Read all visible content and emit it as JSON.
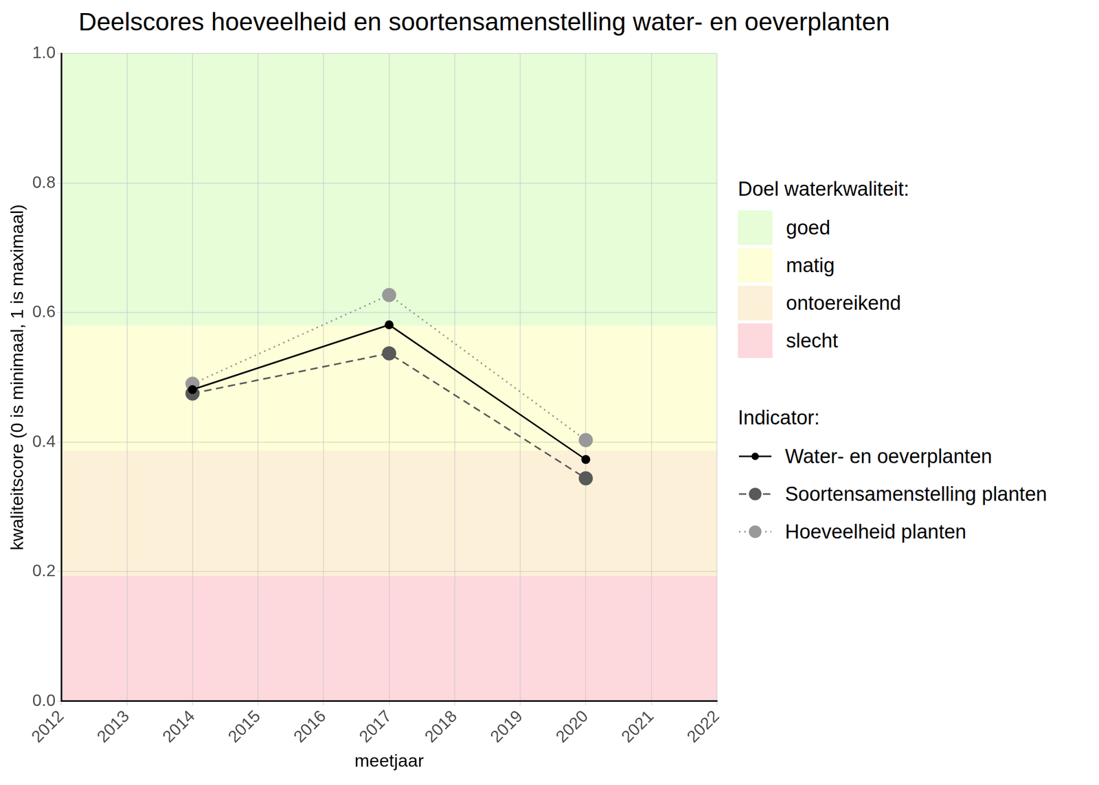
{
  "chart_data": {
    "type": "line",
    "title": "Deelscores hoeveelheid en soortensamenstelling water- en oeverplanten",
    "x_label": "meetjaar",
    "y_label": "kwaliteitscore (0 is minimaal, 1 is maximaal)",
    "x": [
      2014,
      2017,
      2020
    ],
    "series": [
      {
        "name": "Water- en oeverplanten",
        "color": "#000000",
        "line_style": "solid",
        "marker": "small_circle",
        "values": [
          0.481,
          0.581,
          0.373
        ]
      },
      {
        "name": "Soortensamenstelling planten",
        "color": "#595959",
        "line_style": "dashed",
        "marker": "circle",
        "values": [
          0.475,
          0.537,
          0.344
        ]
      },
      {
        "name": "Hoeveelheid planten",
        "color": "#999999",
        "line_style": "dotted",
        "marker": "circle",
        "values": [
          0.49,
          0.627,
          0.403
        ]
      }
    ],
    "xlim": [
      2012,
      2022
    ],
    "xticks": [
      2012,
      2013,
      2014,
      2015,
      2016,
      2017,
      2018,
      2019,
      2020,
      2021,
      2022
    ],
    "ylim": [
      0,
      1
    ],
    "yticks": [
      {
        "value": 0,
        "label": "0.0"
      },
      {
        "value": 0.2,
        "label": "0.2"
      },
      {
        "value": 0.4,
        "label": "0.4"
      },
      {
        "value": 0.6,
        "label": "0.6"
      },
      {
        "value": 0.8,
        "label": "0.8"
      },
      {
        "value": 1,
        "label": "1.0"
      }
    ],
    "grid": true,
    "legend_title": "Indicator:",
    "bands_title": "Doel waterkwaliteit:",
    "bands": [
      {
        "name": "goed",
        "color": "#e6fdd8",
        "from": 0.58,
        "to": 1.0
      },
      {
        "name": "matig",
        "color": "#fefed8",
        "from": 0.387,
        "to": 0.58
      },
      {
        "name": "ontoereikend",
        "color": "#fdf0d8",
        "from": 0.193,
        "to": 0.387
      },
      {
        "name": "slecht",
        "color": "#fdd8dc",
        "from": 0,
        "to": 0.193
      }
    ]
  }
}
